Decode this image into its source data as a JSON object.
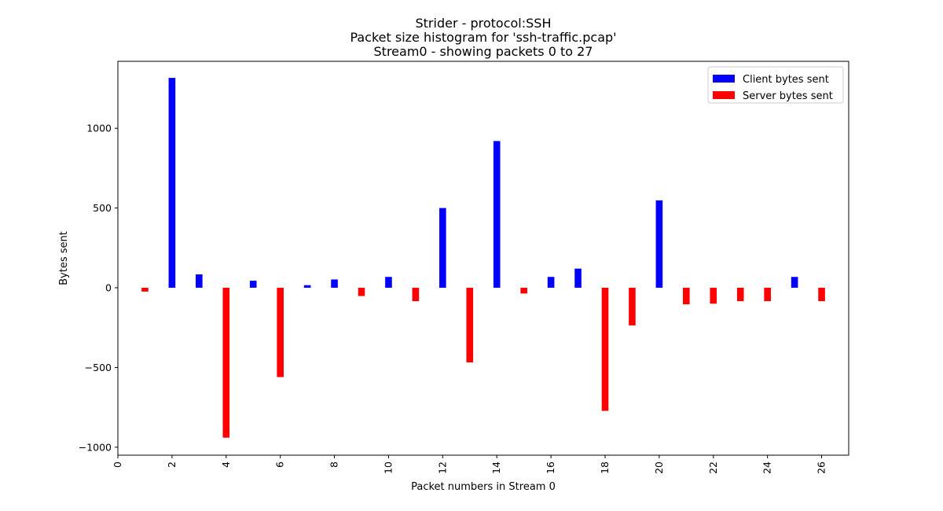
{
  "chart_data": {
    "type": "bar",
    "title": [
      "Strider - protocol:SSH",
      "Packet size histogram for 'ssh-traffic.pcap'",
      "Stream0 - showing packets 0 to 27"
    ],
    "xlabel": "Packet numbers in Stream 0",
    "ylabel": "Bytes sent",
    "xlim": [
      0,
      27
    ],
    "ylim": [
      -1050,
      1420
    ],
    "xticks": [
      0,
      2,
      4,
      6,
      8,
      10,
      12,
      14,
      16,
      18,
      20,
      22,
      24,
      26
    ],
    "yticks": [
      -1000,
      -500,
      0,
      500,
      1000
    ],
    "grid": false,
    "legend_position": "top-right",
    "series": [
      {
        "name": "Client bytes sent",
        "color": "#0000ff",
        "x": [
          2,
          3,
          5,
          7,
          8,
          10,
          12,
          14,
          16,
          17,
          20,
          25
        ],
        "values": [
          1316,
          84,
          44,
          16,
          52,
          68,
          500,
          920,
          68,
          120,
          548,
          68
        ]
      },
      {
        "name": "Server bytes sent",
        "color": "#ff0000",
        "x": [
          1,
          4,
          6,
          9,
          11,
          13,
          15,
          18,
          19,
          21,
          22,
          23,
          24,
          26
        ],
        "values": [
          -24,
          -940,
          -560,
          -52,
          -84,
          -468,
          -36,
          -772,
          -236,
          -104,
          -100,
          -84,
          -84,
          -84
        ]
      }
    ]
  }
}
